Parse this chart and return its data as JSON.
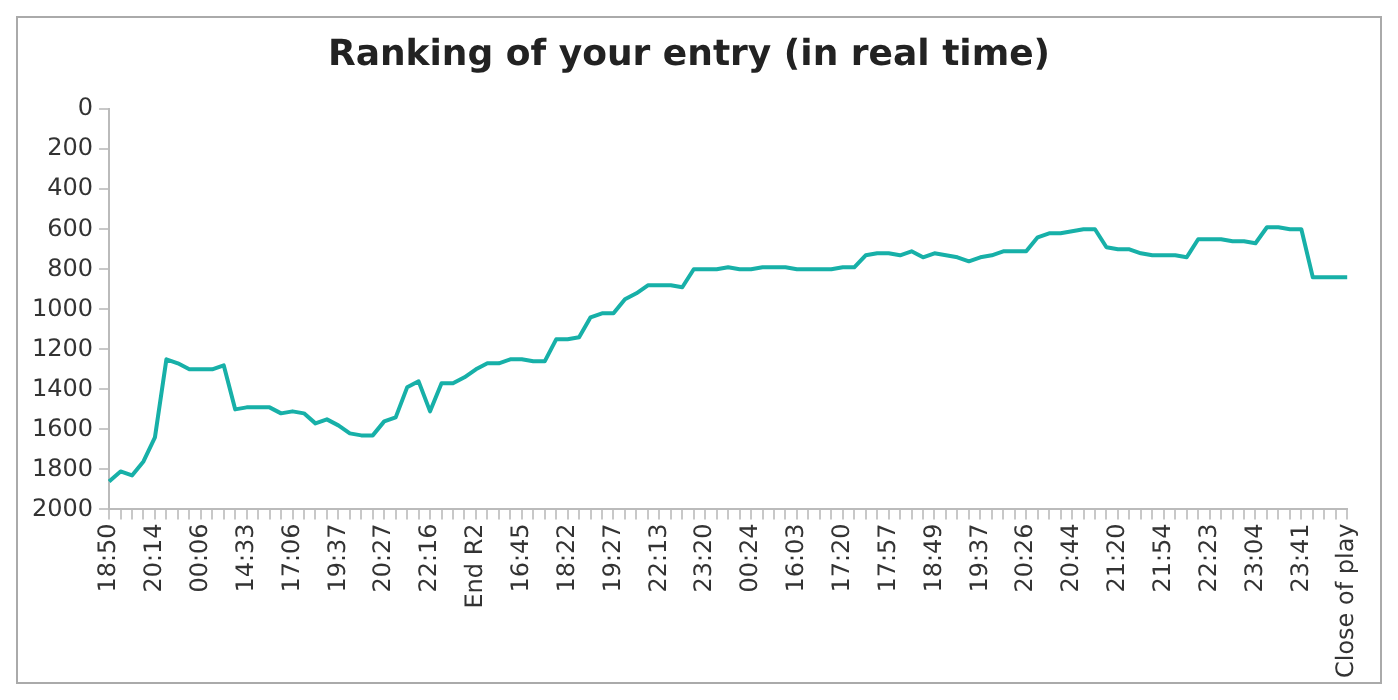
{
  "chart_data": {
    "type": "line",
    "title": "Ranking of your entry (in real time)",
    "categories": [
      "18:50",
      null,
      null,
      null,
      "20:14",
      null,
      null,
      null,
      "00:06",
      null,
      null,
      null,
      "14:33",
      null,
      null,
      null,
      "17:06",
      null,
      null,
      null,
      "19:37",
      null,
      null,
      null,
      "20:27",
      null,
      null,
      null,
      "22:16",
      null,
      null,
      null,
      "End R2",
      null,
      null,
      null,
      "16:45",
      null,
      null,
      null,
      "18:22",
      null,
      null,
      null,
      "19:27",
      null,
      null,
      null,
      "22:13",
      null,
      null,
      null,
      "23:20",
      null,
      null,
      null,
      "00:24",
      null,
      null,
      null,
      "16:03",
      null,
      null,
      null,
      "17:20",
      null,
      null,
      null,
      "17:57",
      null,
      null,
      null,
      "18:49",
      null,
      null,
      null,
      "19:37",
      null,
      null,
      null,
      "20:26",
      null,
      null,
      null,
      "20:44",
      null,
      null,
      null,
      "21:20",
      null,
      null,
      null,
      "21:54",
      null,
      null,
      null,
      "22:23",
      null,
      null,
      null,
      "23:04",
      null,
      null,
      null,
      "23:41",
      null,
      null,
      null,
      "Close of play"
    ],
    "series": [
      {
        "color": "#17b0a8",
        "values": [
          1860,
          1810,
          1830,
          1760,
          1640,
          1250,
          1270,
          1300,
          1300,
          1300,
          1280,
          1500,
          1490,
          1490,
          1490,
          1520,
          1510,
          1520,
          1570,
          1550,
          1580,
          1620,
          1630,
          1630,
          1560,
          1540,
          1390,
          1360,
          1510,
          1370,
          1370,
          1340,
          1300,
          1270,
          1270,
          1250,
          1250,
          1260,
          1260,
          1150,
          1150,
          1140,
          1040,
          1020,
          1020,
          950,
          920,
          880,
          880,
          880,
          890,
          800,
          800,
          800,
          790,
          800,
          800,
          790,
          790,
          790,
          800,
          800,
          800,
          800,
          790,
          790,
          730,
          720,
          720,
          730,
          710,
          740,
          720,
          730,
          740,
          760,
          740,
          730,
          710,
          710,
          710,
          640,
          620,
          620,
          610,
          600,
          600,
          690,
          700,
          700,
          720,
          730,
          730,
          730,
          740,
          650,
          650,
          650,
          660,
          660,
          670,
          590,
          590,
          600,
          600,
          840,
          840,
          840,
          840
        ]
      }
    ],
    "ylim": [
      2000,
      0
    ],
    "yticks": [
      0,
      200,
      400,
      600,
      800,
      1000,
      1200,
      1400,
      1600,
      1800,
      2000
    ],
    "grid": false,
    "legend": false,
    "marker": "none",
    "line_style": "solid"
  }
}
